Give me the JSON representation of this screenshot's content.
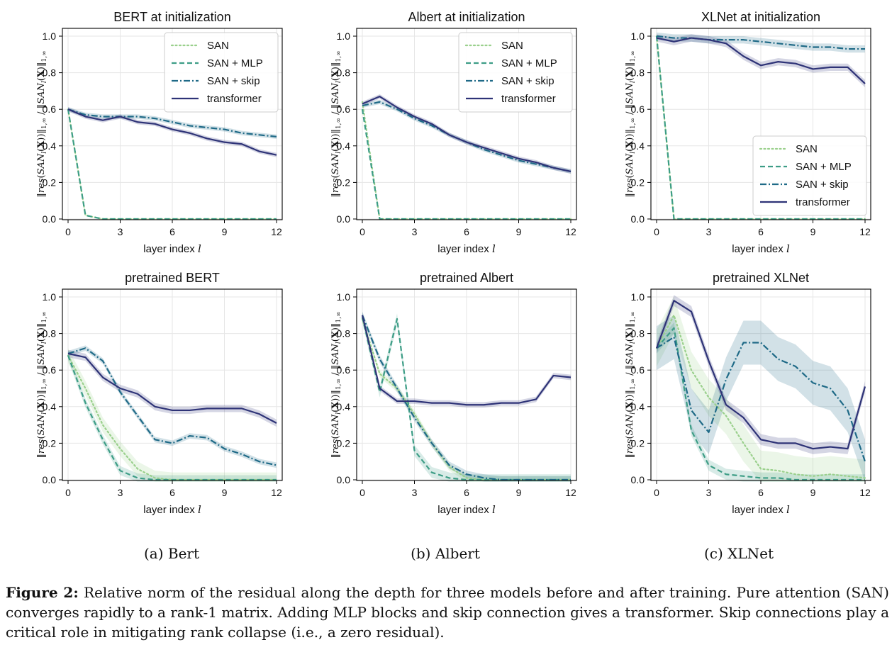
{
  "figure": {
    "subcaptions": [
      "(a) Bert",
      "(b) Albert",
      "(c) XLNet"
    ],
    "caption_bold": "Figure 2:",
    "caption_text": " Relative norm of the residual along the depth for three models before and after training. Pure attention (SAN) converges rapidly to a rank-1 matrix. Adding MLP blocks and skip connection gives a transformer. Skip connections play a critical role in mitigating rank collapse (i.e., a zero residual)."
  },
  "colors": {
    "SAN": "#9ad08c",
    "SAN + MLP": "#3d9d86",
    "SAN + skip": "#1f6a87",
    "transformer": "#2e3377"
  },
  "chart_data": [
    {
      "type": "line",
      "title": "BERT at initialization",
      "xlabel": "layer index l",
      "ylabel": "‖res(SAN_l(X))‖_{1,∞} / ‖SAN_l(X)‖_{1,∞}",
      "xlim": [
        0,
        12
      ],
      "ylim": [
        0,
        1.0
      ],
      "xticks": [
        0,
        3,
        6,
        9,
        12
      ],
      "yticks": [
        0.0,
        0.2,
        0.4,
        0.6,
        0.8,
        1.0
      ],
      "grid": true,
      "legend": "top-right",
      "x": [
        0,
        1,
        2,
        3,
        4,
        5,
        6,
        7,
        8,
        9,
        10,
        11,
        12
      ],
      "series": [
        {
          "name": "SAN",
          "style": "dotted",
          "values": [
            0.6,
            0.02,
            0,
            0,
            0,
            0,
            0,
            0,
            0,
            0,
            0,
            0,
            0
          ]
        },
        {
          "name": "SAN + MLP",
          "style": "dashed",
          "values": [
            0.6,
            0.02,
            0,
            0,
            0,
            0,
            0,
            0,
            0,
            0,
            0,
            0,
            0
          ]
        },
        {
          "name": "SAN + skip",
          "style": "dashdot",
          "values": [
            0.6,
            0.57,
            0.56,
            0.56,
            0.56,
            0.55,
            0.53,
            0.51,
            0.5,
            0.49,
            0.47,
            0.46,
            0.45
          ],
          "band": 0.012
        },
        {
          "name": "transformer",
          "style": "solid",
          "values": [
            0.6,
            0.56,
            0.54,
            0.56,
            0.53,
            0.52,
            0.49,
            0.47,
            0.44,
            0.42,
            0.41,
            0.37,
            0.35
          ],
          "band": 0.012
        }
      ]
    },
    {
      "type": "line",
      "title": "Albert at initialization",
      "xlabel": "layer index l",
      "ylabel": "‖res(SAN_l(X))‖_{1,∞} / ‖SAN_l(X)‖_{1,∞}",
      "xlim": [
        0,
        12
      ],
      "ylim": [
        0,
        1.0
      ],
      "xticks": [
        0,
        3,
        6,
        9,
        12
      ],
      "yticks": [
        0.0,
        0.2,
        0.4,
        0.6,
        0.8,
        1.0
      ],
      "grid": true,
      "legend": "top-right",
      "x": [
        0,
        1,
        2,
        3,
        4,
        5,
        6,
        7,
        8,
        9,
        10,
        11,
        12
      ],
      "series": [
        {
          "name": "SAN",
          "style": "dotted",
          "values": [
            0.64,
            0.0,
            0,
            0,
            0,
            0,
            0,
            0,
            0,
            0,
            0,
            0,
            0
          ]
        },
        {
          "name": "SAN + MLP",
          "style": "dashed",
          "values": [
            0.6,
            0.0,
            0,
            0,
            0,
            0,
            0,
            0,
            0,
            0,
            0,
            0,
            0
          ]
        },
        {
          "name": "SAN + skip",
          "style": "dashdot",
          "values": [
            0.62,
            0.64,
            0.6,
            0.55,
            0.51,
            0.46,
            0.42,
            0.38,
            0.35,
            0.32,
            0.3,
            0.28,
            0.26
          ],
          "band": 0.012
        },
        {
          "name": "transformer",
          "style": "solid",
          "values": [
            0.63,
            0.67,
            0.61,
            0.56,
            0.52,
            0.46,
            0.42,
            0.39,
            0.36,
            0.33,
            0.31,
            0.28,
            0.26
          ],
          "band": 0.012
        }
      ]
    },
    {
      "type": "line",
      "title": "XLNet at initialization",
      "xlabel": "layer index l",
      "ylabel": "‖res(SAN_l(X))‖_{1,∞} / ‖SAN_l(X)‖_{1,∞}",
      "xlim": [
        0,
        12
      ],
      "ylim": [
        0,
        1.0
      ],
      "xticks": [
        0,
        3,
        6,
        9,
        12
      ],
      "yticks": [
        0.0,
        0.2,
        0.4,
        0.6,
        0.8,
        1.0
      ],
      "grid": true,
      "legend": "bottom-right",
      "x": [
        0,
        1,
        2,
        3,
        4,
        5,
        6,
        7,
        8,
        9,
        10,
        11,
        12
      ],
      "series": [
        {
          "name": "SAN",
          "style": "dotted",
          "values": [
            1.0,
            0.0,
            0,
            0,
            0,
            0,
            0,
            0,
            0,
            0,
            0,
            0,
            0
          ]
        },
        {
          "name": "SAN + MLP",
          "style": "dashed",
          "values": [
            1.0,
            0.0,
            0,
            0,
            0,
            0,
            0,
            0,
            0,
            0,
            0,
            0,
            0
          ]
        },
        {
          "name": "SAN + skip",
          "style": "dashdot",
          "values": [
            1.0,
            0.99,
            0.99,
            0.98,
            0.98,
            0.98,
            0.97,
            0.96,
            0.95,
            0.94,
            0.94,
            0.93,
            0.93
          ],
          "band": 0.02
        },
        {
          "name": "transformer",
          "style": "solid",
          "values": [
            0.99,
            0.97,
            0.99,
            0.98,
            0.96,
            0.89,
            0.84,
            0.86,
            0.85,
            0.82,
            0.83,
            0.83,
            0.74
          ],
          "band": 0.02
        }
      ]
    },
    {
      "type": "line",
      "title": "pretrained BERT",
      "xlabel": "layer index l",
      "ylabel": "‖res(SAN_l(X))‖_{1,∞} / ‖SAN_l(X)‖_{1,∞}",
      "xlim": [
        0,
        12
      ],
      "ylim": [
        0,
        1.0
      ],
      "xticks": [
        0,
        3,
        6,
        9,
        12
      ],
      "yticks": [
        0.0,
        0.2,
        0.4,
        0.6,
        0.8,
        1.0
      ],
      "grid": true,
      "x": [
        0,
        1,
        2,
        3,
        4,
        5,
        6,
        7,
        8,
        9,
        10,
        11,
        12
      ],
      "series": [
        {
          "name": "SAN",
          "style": "dotted",
          "values": [
            0.68,
            0.5,
            0.3,
            0.17,
            0.06,
            0.01,
            0,
            0,
            0,
            0,
            0,
            0,
            0
          ],
          "band": 0.04
        },
        {
          "name": "SAN + MLP",
          "style": "dashed",
          "values": [
            0.68,
            0.42,
            0.22,
            0.05,
            0.01,
            0,
            0,
            0,
            0,
            0,
            0,
            0,
            0
          ],
          "band": 0.025
        },
        {
          "name": "SAN + skip",
          "style": "dashdot",
          "values": [
            0.69,
            0.72,
            0.65,
            0.48,
            0.35,
            0.22,
            0.2,
            0.24,
            0.23,
            0.17,
            0.14,
            0.1,
            0.08
          ],
          "band": 0.015
        },
        {
          "name": "transformer",
          "style": "solid",
          "values": [
            0.69,
            0.67,
            0.56,
            0.5,
            0.47,
            0.4,
            0.38,
            0.38,
            0.39,
            0.39,
            0.39,
            0.36,
            0.31
          ],
          "band": 0.02
        }
      ]
    },
    {
      "type": "line",
      "title": "pretrained Albert",
      "xlabel": "layer index l",
      "ylabel": "‖res(SAN_l(X))‖_{1,∞} / ‖SAN_l(X)‖_{1,∞}",
      "xlim": [
        0,
        12
      ],
      "ylim": [
        0,
        1.0
      ],
      "xticks": [
        0,
        3,
        6,
        9,
        12
      ],
      "yticks": [
        0.0,
        0.2,
        0.4,
        0.6,
        0.8,
        1.0
      ],
      "grid": true,
      "x": [
        0,
        1,
        2,
        3,
        4,
        5,
        6,
        7,
        8,
        9,
        10,
        11,
        12
      ],
      "series": [
        {
          "name": "SAN",
          "style": "dotted",
          "values": [
            0.88,
            0.58,
            0.5,
            0.36,
            0.2,
            0.07,
            0.01,
            0,
            0,
            0,
            0,
            0,
            0
          ],
          "band": 0.02
        },
        {
          "name": "SAN + MLP",
          "style": "dashed",
          "values": [
            0.89,
            0.48,
            0.88,
            0.16,
            0.04,
            0.01,
            0,
            0,
            0,
            0,
            0,
            0,
            0
          ],
          "band": 0.03
        },
        {
          "name": "SAN + skip",
          "style": "dashdot",
          "values": [
            0.9,
            0.66,
            0.5,
            0.34,
            0.2,
            0.08,
            0.03,
            0.01,
            0,
            0,
            0,
            0,
            0
          ],
          "band": 0.02
        },
        {
          "name": "transformer",
          "style": "solid",
          "values": [
            0.9,
            0.5,
            0.43,
            0.43,
            0.42,
            0.42,
            0.41,
            0.41,
            0.42,
            0.42,
            0.44,
            0.57,
            0.56
          ],
          "band": 0.015
        }
      ]
    },
    {
      "type": "line",
      "title": "pretrained XLNet",
      "xlabel": "layer index l",
      "ylabel": "‖res(SAN_l(X))‖_{1,∞} / ‖SAN_l(X)‖_{1,∞}",
      "xlim": [
        0,
        12
      ],
      "ylim": [
        0,
        1.0
      ],
      "xticks": [
        0,
        3,
        6,
        9,
        12
      ],
      "yticks": [
        0.0,
        0.2,
        0.4,
        0.6,
        0.8,
        1.0
      ],
      "grid": true,
      "x": [
        0,
        1,
        2,
        3,
        4,
        5,
        6,
        7,
        8,
        9,
        10,
        11,
        12
      ],
      "series": [
        {
          "name": "SAN",
          "style": "dotted",
          "values": [
            0.72,
            0.9,
            0.6,
            0.45,
            0.35,
            0.2,
            0.06,
            0.05,
            0.03,
            0.02,
            0.03,
            0.02,
            0.01
          ],
          "band": 0.1
        },
        {
          "name": "SAN + MLP",
          "style": "dashed",
          "values": [
            0.72,
            0.83,
            0.27,
            0.08,
            0.03,
            0.02,
            0.01,
            0.01,
            0,
            0,
            0,
            0,
            0
          ],
          "band": 0.03
        },
        {
          "name": "SAN + skip",
          "style": "dashdot",
          "values": [
            0.72,
            0.78,
            0.38,
            0.26,
            0.55,
            0.75,
            0.75,
            0.66,
            0.62,
            0.53,
            0.5,
            0.38,
            0.1
          ],
          "band": 0.12
        },
        {
          "name": "transformer",
          "style": "solid",
          "values": [
            0.72,
            0.98,
            0.92,
            0.65,
            0.41,
            0.34,
            0.22,
            0.2,
            0.2,
            0.17,
            0.18,
            0.17,
            0.51
          ],
          "band": 0.03
        }
      ]
    }
  ]
}
